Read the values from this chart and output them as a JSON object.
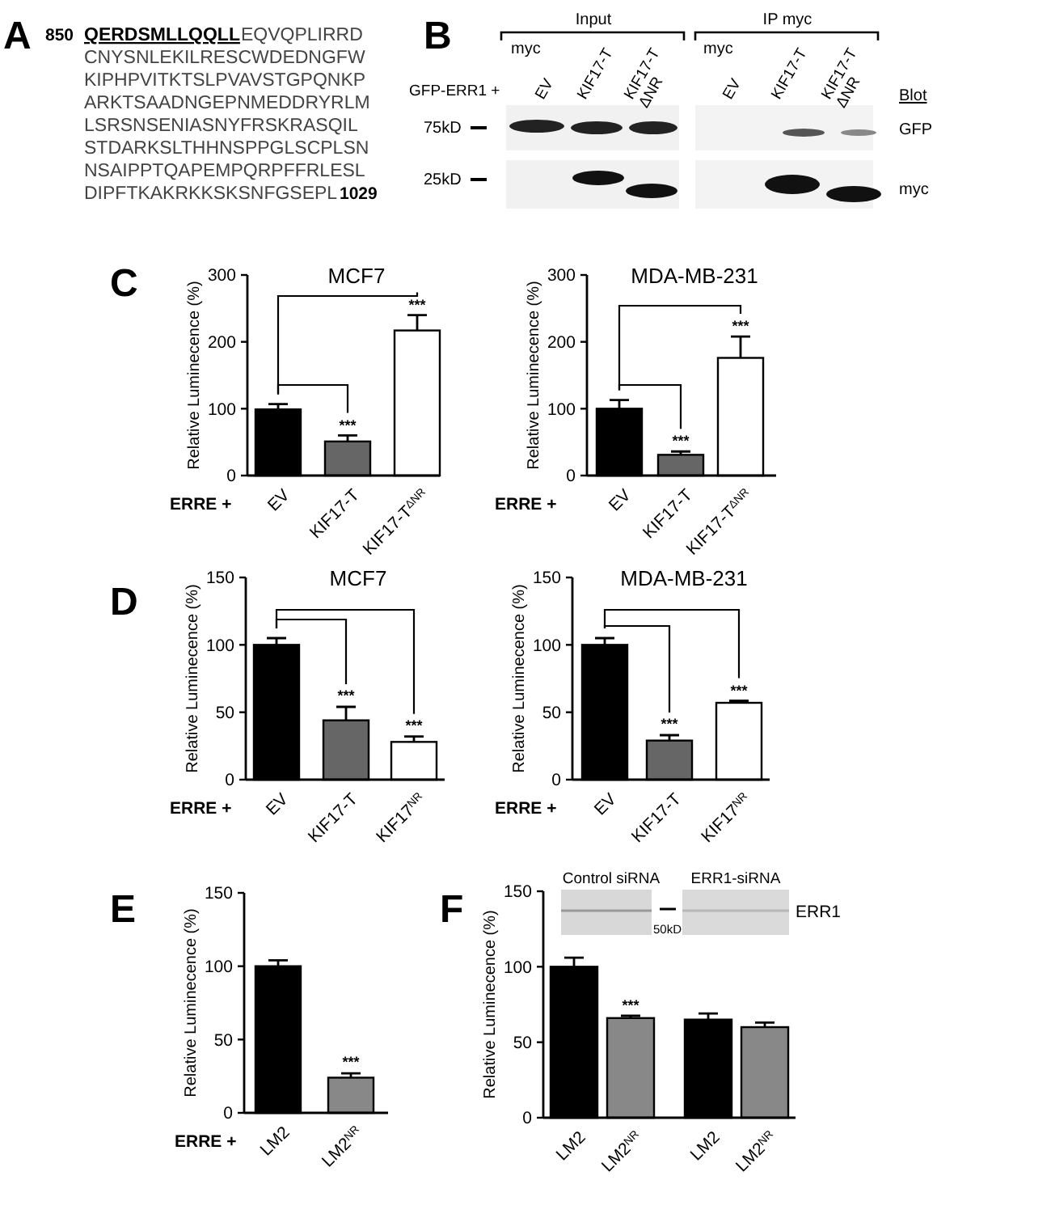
{
  "chart_data": [
    {
      "type": "other",
      "annotations": [
        "A",
        "850",
        "QERDSMLLQQLL",
        "EQVQPLIRRD",
        "CNYSNLEKILRESCWDEDNGFW",
        "KIPHPVITKTSLPVAVSTGPQNKP",
        "ARKTSAADNGEPNMEDDRYRLM",
        "LSRSNSENIASNYFRSKRASQIL",
        "STDARKSLTHHNSPPGLSCPLSN",
        "NSAIPPTQAPEMPQRPFFRLESL",
        "DIPFTKAKRKKSKSNFGSEPL",
        "1029"
      ]
    },
    {
      "type": "other",
      "annotations": [
        "B",
        "Input",
        "IP myc",
        "myc",
        "myc",
        "GFP-ERR1 +",
        "EV",
        "KIF17-T",
        "KIF17-T\nΔNR",
        "EV",
        "KIF17-T",
        "KIF17-T\nΔNR",
        "Blot",
        "75kD",
        "25kD",
        "GFP",
        "myc"
      ]
    },
    {
      "type": "bar",
      "title": "MCF7",
      "ylabel": "Relative Luminecence (%)",
      "xlabel": "ERRE +",
      "categories": [
        "EV",
        "KIF17-T",
        "KIF17-T$^{ΔNR}$"
      ],
      "values": [
        99,
        51,
        217
      ],
      "errors": [
        8,
        9,
        23
      ],
      "colors": [
        "#000000",
        "#666666",
        "#ffffff"
      ],
      "ylim": [
        0,
        300
      ],
      "yticks": [
        0,
        100,
        200,
        300
      ],
      "annotations": [
        "C",
        {
          "text": "***",
          "x": "KIF17-T",
          "y": 61
        },
        {
          "text": "***",
          "x": "KIF17-T$^{ΔNR}$",
          "y": 241
        }
      ]
    },
    {
      "type": "bar",
      "title": "MDA-MB-231",
      "ylabel": "Relative Luminecence (%)",
      "xlabel": "ERRE +",
      "categories": [
        "EV",
        "KIF17-T",
        "KIF17-T$^{ΔNR}$"
      ],
      "values": [
        100,
        31,
        176
      ],
      "errors": [
        13,
        5,
        32
      ],
      "colors": [
        "#000000",
        "#666666",
        "#ffffff"
      ],
      "ylim": [
        0,
        300
      ],
      "yticks": [
        0,
        100,
        200,
        300
      ],
      "annotations": [
        {
          "text": "***",
          "x": "KIF17-T",
          "y": 37
        },
        {
          "text": "***",
          "x": "KIF17-T$^{ΔNR}$",
          "y": 209
        }
      ]
    },
    {
      "type": "bar",
      "title": "MCF7",
      "ylabel": "Relative Luminecence (%)",
      "xlabel": "ERRE +",
      "categories": [
        "EV",
        "KIF17-T",
        "KIF17$^{NR}$"
      ],
      "values": [
        100,
        44,
        28
      ],
      "errors": [
        5,
        10,
        4
      ],
      "colors": [
        "#000000",
        "#666666",
        "#ffffff"
      ],
      "ylim": [
        0,
        150
      ],
      "yticks": [
        0,
        50,
        100,
        150
      ],
      "annotations": [
        "D",
        {
          "text": "***",
          "x": "KIF17-T",
          "y": 55
        },
        {
          "text": "***",
          "x": "KIF17$^{NR}$",
          "y": 33
        }
      ]
    },
    {
      "type": "bar",
      "title": "MDA-MB-231",
      "ylabel": "Relative Luminecence (%)",
      "xlabel": "ERRE +",
      "categories": [
        "EV",
        "KIF17-T",
        "KIF17$^{NR}$"
      ],
      "values": [
        100,
        29,
        57
      ],
      "errors": [
        5,
        4,
        1.5
      ],
      "colors": [
        "#000000",
        "#666666",
        "#ffffff"
      ],
      "ylim": [
        0,
        150
      ],
      "yticks": [
        0,
        50,
        100,
        150
      ],
      "annotations": [
        {
          "text": "***",
          "x": "KIF17-T",
          "y": 34
        },
        {
          "text": "***",
          "x": "KIF17$^{NR}$",
          "y": 59
        }
      ]
    },
    {
      "type": "bar",
      "ylabel": "Relative Luminecence (%)",
      "xlabel": "ERRE +",
      "categories": [
        "LM2",
        "LM2$^{NR}$"
      ],
      "values": [
        100,
        24
      ],
      "errors": [
        4,
        3
      ],
      "colors": [
        "#000000",
        "#888888"
      ],
      "ylim": [
        0,
        150
      ],
      "yticks": [
        0,
        50,
        100,
        150
      ],
      "annotations": [
        "E",
        {
          "text": "***",
          "x": "LM2$^{NR}$",
          "y": 28
        }
      ]
    },
    {
      "type": "bar",
      "ylabel": "Relative Luminecence (%)",
      "categories": [
        "LM2",
        "LM2$^{NR}$",
        "LM2",
        "LM2$^{NR}$"
      ],
      "values": [
        100,
        66,
        65,
        60
      ],
      "errors": [
        6,
        1.5,
        4,
        3
      ],
      "colors": [
        "#000000",
        "#888888",
        "#000000",
        "#888888"
      ],
      "ylim": [
        0,
        150
      ],
      "yticks": [
        0,
        50,
        100,
        150
      ],
      "annotations": [
        "F",
        "Control siRNA",
        "ERR1-siRNA",
        "50kD",
        "ERR1",
        {
          "text": "***",
          "x": "LM2$^{NR}$",
          "y": 68
        }
      ]
    }
  ]
}
